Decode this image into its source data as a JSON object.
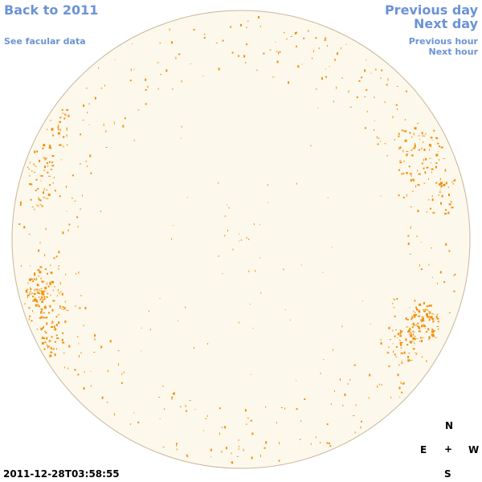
{
  "nav": {
    "back_label": "Back to 2011",
    "facular_label": "See facular data",
    "prev_day_label": "Previous day",
    "next_day_label": "Next day",
    "prev_hour_label": "Previous hour",
    "next_hour_label": "Next hour"
  },
  "compass": {
    "north": "N",
    "south": "S",
    "east": "E",
    "west": "W",
    "center": "+"
  },
  "timestamp": "2011-12-28T03:58:55",
  "colors": {
    "link": "#6b93d6",
    "disk_fill": "#fdf8ec",
    "disk_edge": "#c9b79a",
    "facula": "#f0900a"
  }
}
